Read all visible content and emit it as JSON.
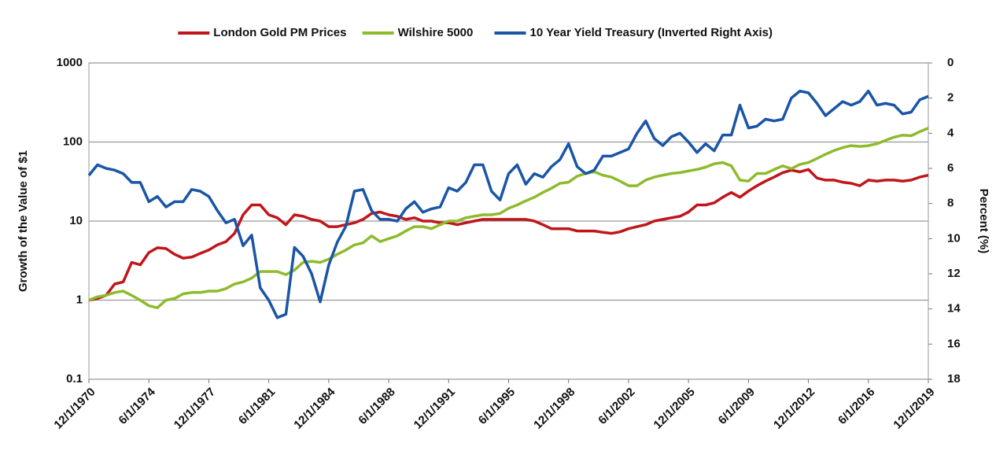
{
  "chart_data": {
    "type": "line",
    "y_label": "Growth of the Value of $1",
    "y2_label": "Percent (%)",
    "ylog": true,
    "ylim": [
      0.1,
      1000
    ],
    "yticks": [
      0.1,
      1,
      10,
      100,
      1000
    ],
    "y2lim": [
      0,
      18
    ],
    "y2ticks": [
      0,
      2,
      4,
      6,
      8,
      10,
      12,
      14,
      16,
      18
    ],
    "y2_inverted": true,
    "grid": true,
    "legend": "top",
    "x": [
      "12/1/1970",
      "6/1/1971",
      "12/1/1971",
      "6/1/1972",
      "12/1/1972",
      "6/1/1973",
      "12/1/1973",
      "6/1/1974",
      "12/1/1974",
      "6/1/1975",
      "12/1/1975",
      "6/1/1976",
      "12/1/1976",
      "6/1/1977",
      "12/1/1977",
      "6/1/1978",
      "12/1/1978",
      "6/1/1979",
      "12/1/1979",
      "6/1/1980",
      "12/1/1980",
      "6/1/1981",
      "12/1/1981",
      "6/1/1982",
      "12/1/1982",
      "6/1/1983",
      "12/1/1983",
      "6/1/1984",
      "12/1/1984",
      "6/1/1985",
      "12/1/1985",
      "6/1/1986",
      "12/1/1986",
      "6/1/1987",
      "12/1/1987",
      "6/1/1988",
      "12/1/1988",
      "6/1/1989",
      "12/1/1989",
      "6/1/1990",
      "12/1/1990",
      "6/1/1991",
      "12/1/1991",
      "6/1/1992",
      "12/1/1992",
      "6/1/1993",
      "12/1/1993",
      "6/1/1994",
      "12/1/1994",
      "6/1/1995",
      "12/1/1995",
      "6/1/1996",
      "12/1/1996",
      "6/1/1997",
      "12/1/1997",
      "6/1/1998",
      "12/1/1998",
      "6/1/1999",
      "12/1/1999",
      "6/1/2000",
      "12/1/2000",
      "6/1/2001",
      "12/1/2001",
      "6/1/2002",
      "12/1/2002",
      "6/1/2003",
      "12/1/2003",
      "6/1/2004",
      "12/1/2004",
      "6/1/2005",
      "12/1/2005",
      "6/1/2006",
      "12/1/2006",
      "6/1/2007",
      "12/1/2007",
      "6/1/2008",
      "12/1/2008",
      "6/1/2009",
      "12/1/2009",
      "6/1/2010",
      "12/1/2010",
      "6/1/2011",
      "12/1/2011",
      "6/1/2012",
      "12/1/2012",
      "6/1/2013",
      "12/1/2013",
      "6/1/2014",
      "12/1/2014",
      "6/1/2015",
      "12/1/2015",
      "6/1/2016",
      "12/1/2016",
      "6/1/2017",
      "12/1/2017",
      "6/1/2018",
      "12/1/2018",
      "6/1/2019",
      "12/1/2019"
    ],
    "series": [
      {
        "name": "London Gold PM Prices",
        "color": "#c0161b",
        "values": [
          1.0,
          1.05,
          1.15,
          1.6,
          1.7,
          3.0,
          2.8,
          4.0,
          4.6,
          4.5,
          3.8,
          3.4,
          3.5,
          3.9,
          4.3,
          5.0,
          5.5,
          7.0,
          12,
          16,
          16,
          12,
          11,
          9,
          12,
          11.5,
          10.5,
          10,
          8.5,
          8.5,
          9,
          9.5,
          10.5,
          12.5,
          13,
          12,
          11.5,
          10.5,
          11,
          10,
          10,
          9.5,
          9.5,
          9,
          9.5,
          10,
          10.5,
          10.5,
          10.5,
          10.5,
          10.5,
          10.5,
          10,
          9,
          8,
          8,
          8,
          7.5,
          7.5,
          7.5,
          7.2,
          7,
          7.3,
          8,
          8.5,
          9,
          10,
          10.5,
          11,
          11.5,
          13,
          16,
          16,
          17,
          20,
          23,
          20,
          24,
          28,
          32,
          36,
          41,
          44,
          42,
          45,
          35,
          33,
          33,
          31,
          30,
          28,
          33,
          32,
          33,
          33,
          32,
          33,
          36,
          38
        ]
      },
      {
        "name": "Wilshire 5000",
        "color": "#8dbb2d",
        "values": [
          1.0,
          1.1,
          1.15,
          1.25,
          1.3,
          1.15,
          1.0,
          0.85,
          0.8,
          1.0,
          1.05,
          1.2,
          1.25,
          1.25,
          1.3,
          1.3,
          1.4,
          1.6,
          1.7,
          1.9,
          2.3,
          2.3,
          2.3,
          2.1,
          2.4,
          3.0,
          3.1,
          3.0,
          3.3,
          3.8,
          4.3,
          5.0,
          5.3,
          6.5,
          5.5,
          6.0,
          6.5,
          7.5,
          8.5,
          8.5,
          8.0,
          9.0,
          10,
          10,
          11,
          11.5,
          12,
          12,
          12.5,
          14.5,
          16,
          18,
          20,
          23,
          26,
          30,
          31,
          37,
          40,
          42,
          38,
          36,
          32,
          28,
          28,
          33,
          36,
          38,
          40,
          41,
          43,
          45,
          48,
          53,
          55,
          50,
          33,
          32,
          40,
          40,
          45,
          50,
          46,
          52,
          55,
          62,
          70,
          78,
          85,
          90,
          88,
          90,
          95,
          105,
          115,
          122,
          120,
          135,
          150
        ]
      },
      {
        "name": "10 Year Yield Treasury (Inverted Right Axis)",
        "color": "#1a55a6",
        "axis": "y2",
        "values": [
          6.4,
          5.8,
          6.0,
          6.1,
          6.3,
          6.8,
          6.8,
          7.9,
          7.6,
          8.2,
          7.9,
          7.9,
          7.2,
          7.3,
          7.6,
          8.4,
          9.1,
          8.9,
          10.4,
          9.8,
          12.8,
          13.5,
          14.5,
          14.3,
          10.5,
          11.0,
          12.0,
          13.6,
          11.5,
          10.2,
          9.3,
          7.3,
          7.2,
          8.4,
          8.9,
          8.9,
          9.0,
          8.3,
          7.9,
          8.5,
          8.3,
          8.2,
          7.1,
          7.3,
          6.8,
          5.8,
          5.8,
          7.3,
          7.8,
          6.3,
          5.8,
          6.9,
          6.3,
          6.5,
          5.9,
          5.5,
          4.6,
          5.9,
          6.3,
          6.1,
          5.3,
          5.3,
          5.1,
          4.9,
          4.0,
          3.3,
          4.3,
          4.7,
          4.2,
          4.0,
          4.5,
          5.1,
          4.6,
          5.0,
          4.1,
          4.1,
          2.4,
          3.7,
          3.6,
          3.2,
          3.3,
          3.2,
          2.0,
          1.6,
          1.7,
          2.3,
          3.0,
          2.6,
          2.2,
          2.4,
          2.2,
          1.6,
          2.4,
          2.3,
          2.4,
          2.9,
          2.8,
          2.1,
          1.9
        ]
      }
    ]
  }
}
